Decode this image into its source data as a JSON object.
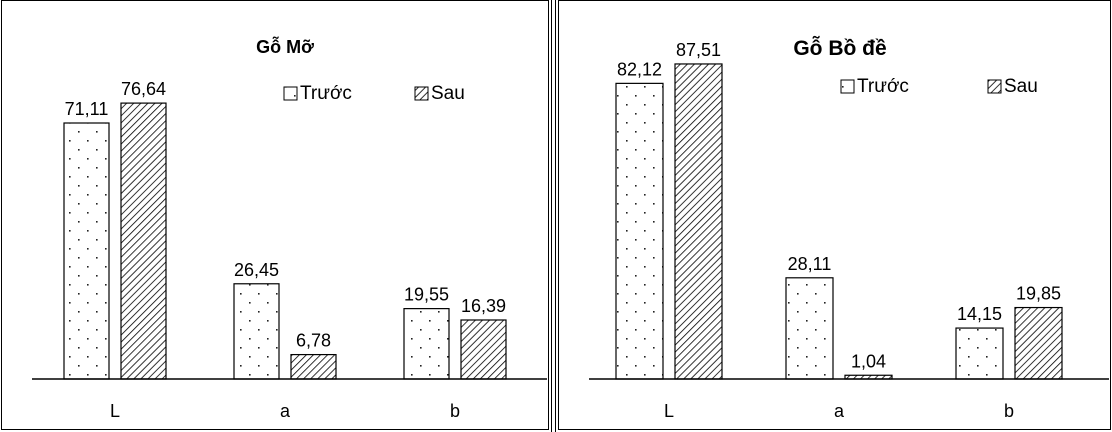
{
  "chart_data": [
    {
      "type": "bar",
      "title": "Gỗ Mỡ",
      "categories": [
        "L",
        "a",
        "b"
      ],
      "series": [
        {
          "name": "Trước",
          "values": [
            71.11,
            26.45,
            19.55
          ],
          "labels": [
            "71,11",
            "26,45",
            "19,55"
          ]
        },
        {
          "name": "Sau",
          "values": [
            76.64,
            6.78,
            16.39
          ],
          "labels": [
            "76,64",
            "6,78",
            "16,39"
          ]
        }
      ],
      "ylim": [
        0,
        100
      ],
      "grid": false,
      "legend": "top-right"
    },
    {
      "type": "bar",
      "title": "Gỗ Bồ đề",
      "categories": [
        "L",
        "a",
        "b"
      ],
      "series": [
        {
          "name": "Trước",
          "values": [
            82.12,
            28.11,
            14.15
          ],
          "labels": [
            "82,12",
            "28,11",
            "14,15"
          ]
        },
        {
          "name": "Sau",
          "values": [
            87.51,
            1.04,
            19.85
          ],
          "labels": [
            "87,51",
            "1,04",
            "19,85"
          ]
        }
      ],
      "ylim": [
        0,
        100
      ],
      "grid": false,
      "legend": "top-right"
    }
  ]
}
